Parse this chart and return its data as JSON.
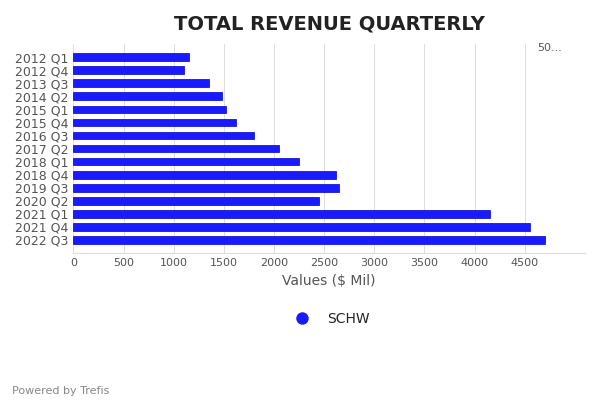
{
  "title": "TOTAL REVENUE QUARTERLY",
  "xlabel": "Values ($ Mil)",
  "categories": [
    "2012 Q1",
    "2012 Q4",
    "2013 Q3",
    "2014 Q2",
    "2015 Q1",
    "2015 Q4",
    "2016 Q3",
    "2017 Q2",
    "2018 Q1",
    "2018 Q4",
    "2019 Q3",
    "2020 Q2",
    "2021 Q1",
    "2021 Q4",
    "2022 Q3"
  ],
  "values": [
    1150,
    1100,
    1350,
    1480,
    1520,
    1620,
    1800,
    2050,
    2250,
    2620,
    2650,
    2450,
    4150,
    4550,
    4700
  ],
  "bar_color": "#1a1aff",
  "bar_linecolor": "#0000cc",
  "background_color": "#ffffff",
  "grid_color": "#dddddd",
  "legend_label": "SCHW",
  "legend_marker_color": "#1a1aff",
  "footer_text": "Powered by Trefis",
  "xlim": [
    0,
    5100
  ],
  "xticks": [
    0,
    500,
    1000,
    1500,
    2000,
    2500,
    3000,
    3500,
    4000,
    4500
  ],
  "xtick_extra_label": "50...",
  "title_fontsize": 14,
  "xlabel_fontsize": 10,
  "ylabel_fontsize": 9,
  "tick_fontsize": 8,
  "legend_fontsize": 10,
  "footer_fontsize": 8,
  "bar_height": 0.6
}
